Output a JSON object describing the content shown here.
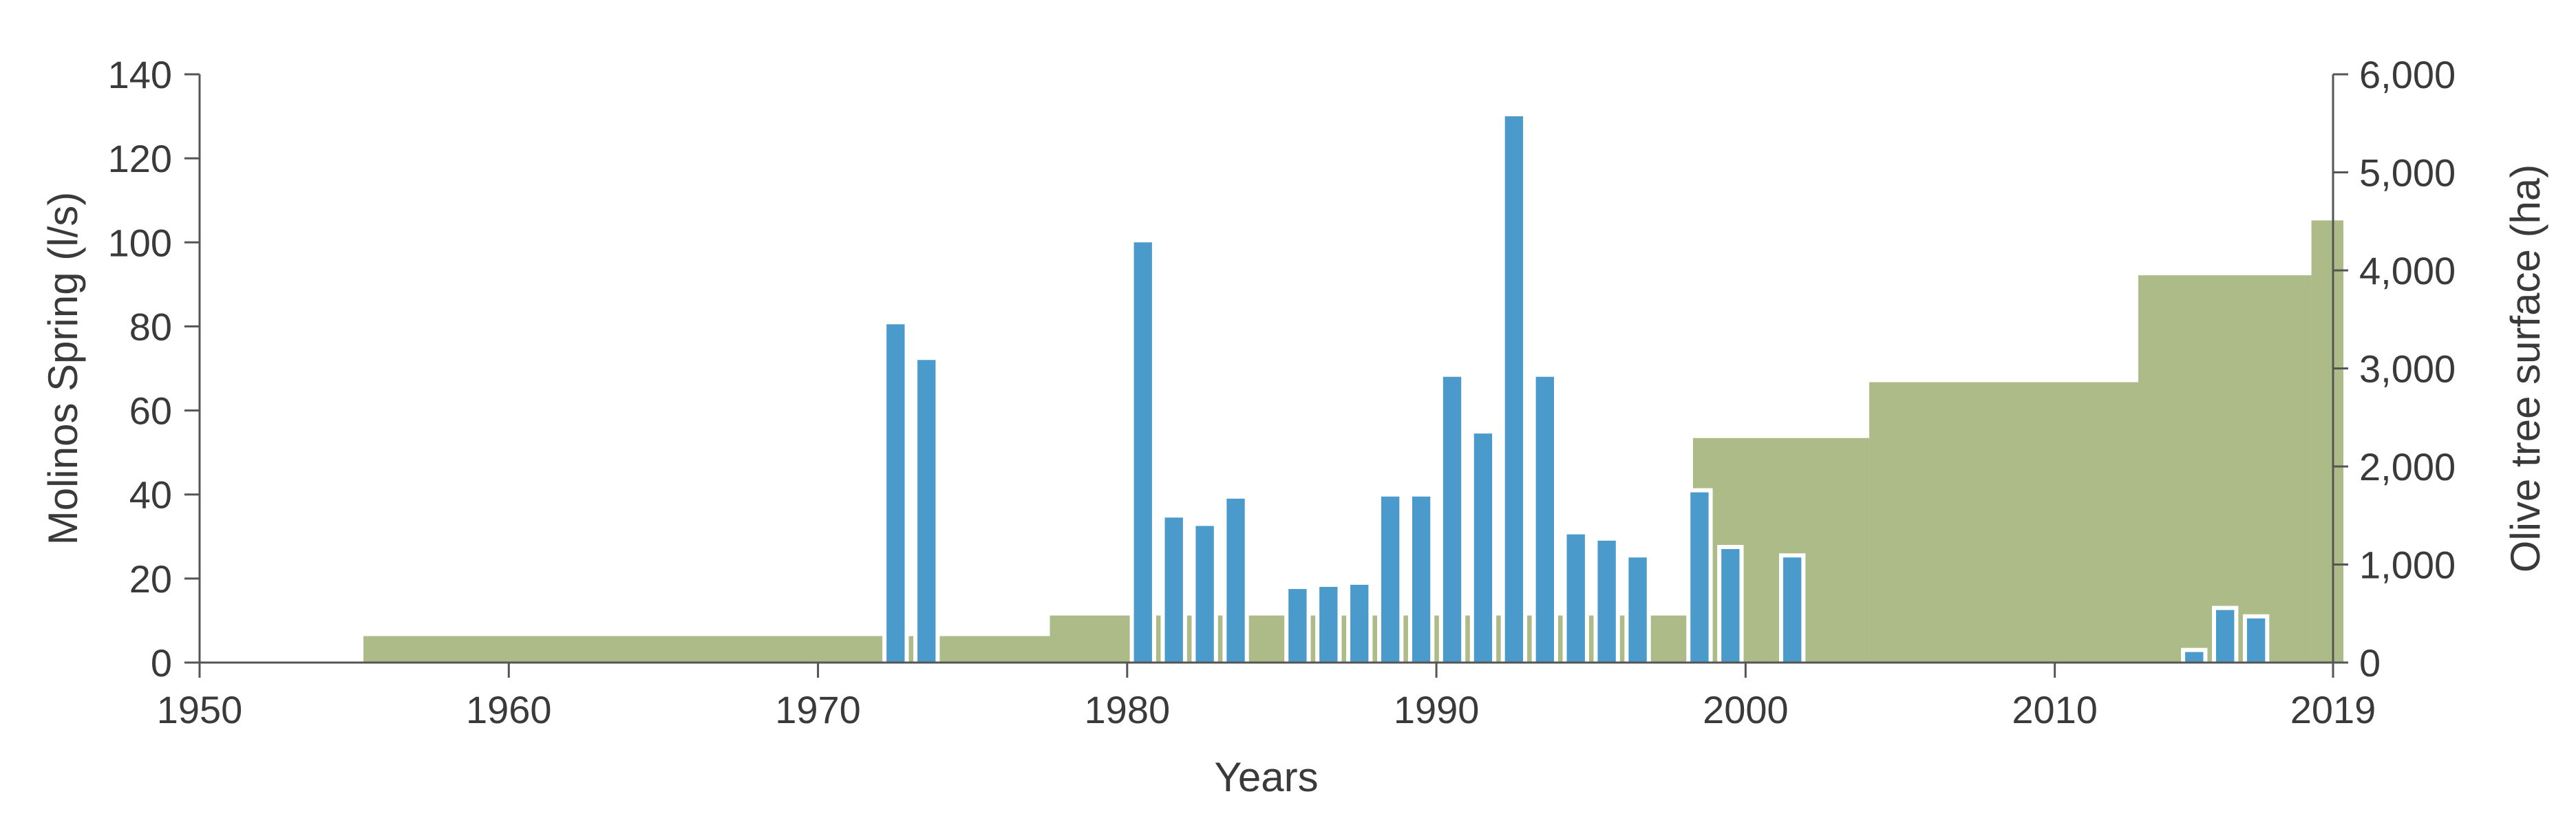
{
  "chart_data": {
    "type": "bar",
    "xlabel": "Years",
    "ylabel_left": "Molinos Spring (l/s)",
    "ylabel_right": "Olive tree surface (ha)",
    "xlim": [
      1950,
      2019
    ],
    "ylim_left": [
      0,
      140
    ],
    "ylim_right": [
      0,
      6000
    ],
    "x_ticks": [
      1950,
      1960,
      1970,
      1980,
      1990,
      2000,
      2010,
      2019
    ],
    "y_ticks_left": [
      0,
      20,
      40,
      60,
      80,
      100,
      120,
      140
    ],
    "y_ticks_right": [
      0,
      1000,
      2000,
      3000,
      4000,
      5000,
      6000
    ],
    "y_tick_labels_right": [
      "0",
      "1,000",
      "2,000",
      "3,000",
      "4,000",
      "5,000",
      "6,000"
    ],
    "grid": false,
    "colors": {
      "spring": "#4a9acb",
      "olive": "#adbb88",
      "axis": "#555555"
    },
    "series": [
      {
        "axis": "right",
        "kind": "step",
        "segments": [
          {
            "from": 1955.3,
            "to": 1977.5,
            "value": 270
          },
          {
            "from": 1977.5,
            "to": 1998.3,
            "value": 480
          },
          {
            "from": 1998.3,
            "to": 2004.0,
            "value": 2290
          },
          {
            "from": 2004.0,
            "to": 2012.7,
            "value": 2860
          },
          {
            "from": 2012.7,
            "to": 2018.3,
            "value": 3950
          },
          {
            "from": 2018.3,
            "to": 2019.5,
            "value": 4510
          }
        ]
      },
      {
        "axis": "left",
        "kind": "bar",
        "points": [
          {
            "x": 1972,
            "y": 81
          },
          {
            "x": 1973,
            "y": 72.5
          },
          {
            "x": 1980,
            "y": 100.5
          },
          {
            "x": 1981,
            "y": 35
          },
          {
            "x": 1982,
            "y": 33
          },
          {
            "x": 1983,
            "y": 39.5
          },
          {
            "x": 1985,
            "y": 18
          },
          {
            "x": 1986,
            "y": 18.5
          },
          {
            "x": 1987,
            "y": 19
          },
          {
            "x": 1988,
            "y": 40
          },
          {
            "x": 1989,
            "y": 40
          },
          {
            "x": 1990,
            "y": 68.5
          },
          {
            "x": 1991,
            "y": 55
          },
          {
            "x": 1992,
            "y": 130.5
          },
          {
            "x": 1993,
            "y": 68.5
          },
          {
            "x": 1994,
            "y": 31
          },
          {
            "x": 1995,
            "y": 29.5
          },
          {
            "x": 1996,
            "y": 25.5
          },
          {
            "x": 1998,
            "y": 41
          },
          {
            "x": 1999,
            "y": 27.5
          },
          {
            "x": 2001,
            "y": 25.5
          },
          {
            "x": 2014,
            "y": 3
          },
          {
            "x": 2015,
            "y": 13
          },
          {
            "x": 2016,
            "y": 11
          }
        ]
      }
    ]
  }
}
